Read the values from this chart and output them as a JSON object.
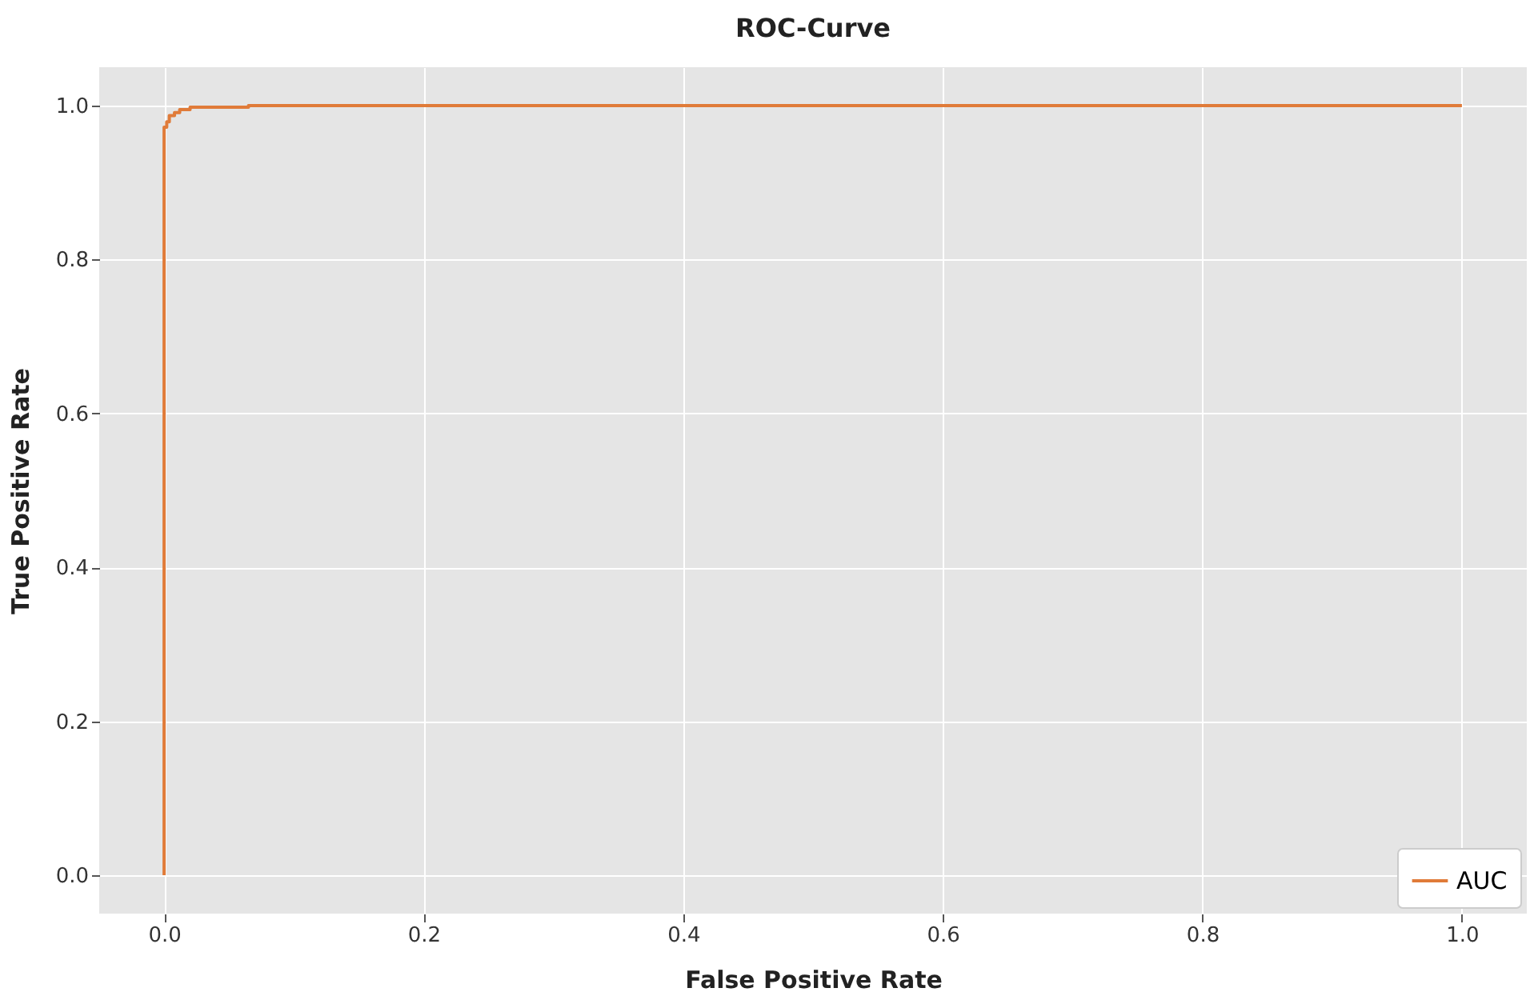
{
  "chart_data": {
    "type": "step",
    "title": "ROC-Curve",
    "xlabel": "False Positive Rate",
    "ylabel": "True Positive Rate",
    "series": [
      {
        "name": "AUC",
        "color": "#e07b39",
        "x": [
          0,
          0,
          0.002,
          0.004,
          0.008,
          0.012,
          0.02,
          0.065,
          1.0
        ],
        "values": [
          0,
          0.972,
          0.979,
          0.987,
          0.991,
          0.995,
          0.998,
          1.0,
          1.0
        ]
      }
    ],
    "xlim": [
      -0.05,
      1.05
    ],
    "ylim": [
      -0.05,
      1.05
    ],
    "xticks": [
      {
        "value": 0,
        "label": "0.0"
      },
      0.2,
      0.4,
      0.6,
      0.8,
      {
        "value": 1,
        "label": "1.0"
      }
    ],
    "yticks": [
      {
        "value": 0,
        "label": "0.0"
      },
      0.2,
      0.4,
      0.6,
      0.8,
      {
        "value": 1,
        "label": "1.0"
      }
    ],
    "grid": true,
    "legend": "bottom right",
    "line_style": "solid",
    "marker": "none"
  }
}
